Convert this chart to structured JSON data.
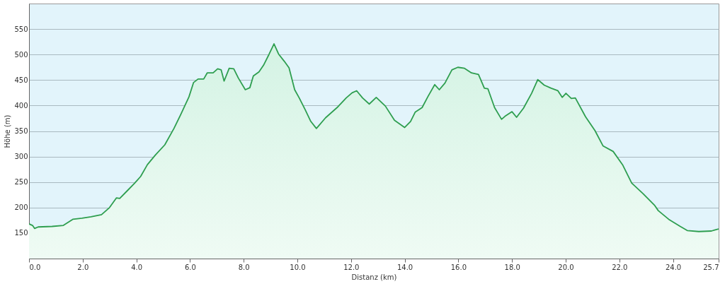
{
  "chart_data": {
    "type": "area",
    "xlabel": "Distanz  (km)",
    "ylabel": "Höhe (m)",
    "x": [
      0,
      0.13,
      0.21,
      0.34,
      0.86,
      1.28,
      1.63,
      1.97,
      2.31,
      2.7,
      3.0,
      3.26,
      3.38,
      3.68,
      3.94,
      4.16,
      4.41,
      4.71,
      5.06,
      5.4,
      5.66,
      5.96,
      6.13,
      6.3,
      6.51,
      6.64,
      6.86,
      7.03,
      7.16,
      7.27,
      7.46,
      7.63,
      7.8,
      8.06,
      8.23,
      8.36,
      8.57,
      8.74,
      8.95,
      9.13,
      9.3,
      9.51,
      9.69,
      9.9,
      10.07,
      10.29,
      10.5,
      10.71,
      11.05,
      11.48,
      11.82,
      12.04,
      12.21,
      12.43,
      12.68,
      12.94,
      13.28,
      13.62,
      14.0,
      14.22,
      14.39,
      14.65,
      14.86,
      15.12,
      15.29,
      15.5,
      15.76,
      15.98,
      16.23,
      16.49,
      16.75,
      16.97,
      17.1,
      17.35,
      17.61,
      17.74,
      18.0,
      18.17,
      18.43,
      18.73,
      18.96,
      19.2,
      19.46,
      19.71,
      19.87,
      20.01,
      20.21,
      20.36,
      20.74,
      21.09,
      21.39,
      21.77,
      22.12,
      22.46,
      22.89,
      23.32,
      23.45,
      23.84,
      24.27,
      24.53,
      24.96,
      25.43,
      25.55,
      25.7
    ],
    "series": [
      {
        "color": "#2e9e4f",
        "values": [
          168,
          165,
          159,
          162,
          163,
          165,
          177,
          179,
          182,
          186,
          200,
          219,
          218,
          234,
          248,
          261,
          284,
          303,
          323,
          355,
          383,
          417,
          445,
          452,
          452,
          464,
          464,
          472,
          470,
          448,
          473,
          472,
          454,
          431,
          435,
          458,
          466,
          479,
          501,
          521,
          501,
          487,
          474,
          431,
          415,
          392,
          369,
          355,
          376,
          396,
          415,
          425,
          429,
          415,
          403,
          416,
          399,
          371,
          357,
          369,
          387,
          396,
          417,
          441,
          431,
          444,
          470,
          475,
          473,
          464,
          461,
          434,
          433,
          396,
          373,
          379,
          388,
          377,
          395,
          424,
          451,
          440,
          434,
          429,
          416,
          424,
          414,
          415,
          378,
          351,
          321,
          310,
          284,
          248,
          227,
          204,
          194,
          177,
          163,
          155,
          153,
          154,
          156,
          158
        ]
      }
    ],
    "xlim": [
      0,
      25.7
    ],
    "xticks": [
      {
        "value": 0,
        "label": "0.0"
      },
      {
        "value": 2,
        "label": "2.0"
      },
      {
        "value": 4,
        "label": "4.0"
      },
      {
        "value": 6,
        "label": "6.0"
      },
      {
        "value": 8,
        "label": "8.0"
      },
      {
        "value": 10,
        "label": "10.0"
      },
      {
        "value": 12,
        "label": "12.0"
      },
      {
        "value": 14,
        "label": "14.0"
      },
      {
        "value": 16,
        "label": "16.0"
      },
      {
        "value": 18,
        "label": "18.0"
      },
      {
        "value": 20,
        "label": "20.0"
      },
      {
        "value": 22,
        "label": "22.0"
      },
      {
        "value": 24,
        "label": "24.0"
      },
      {
        "value": 25.7,
        "label": "25.7"
      }
    ],
    "ylim": [
      100,
      600
    ],
    "yticks": [
      150,
      200,
      250,
      300,
      350,
      400,
      450,
      500,
      550
    ],
    "grid": "y"
  }
}
